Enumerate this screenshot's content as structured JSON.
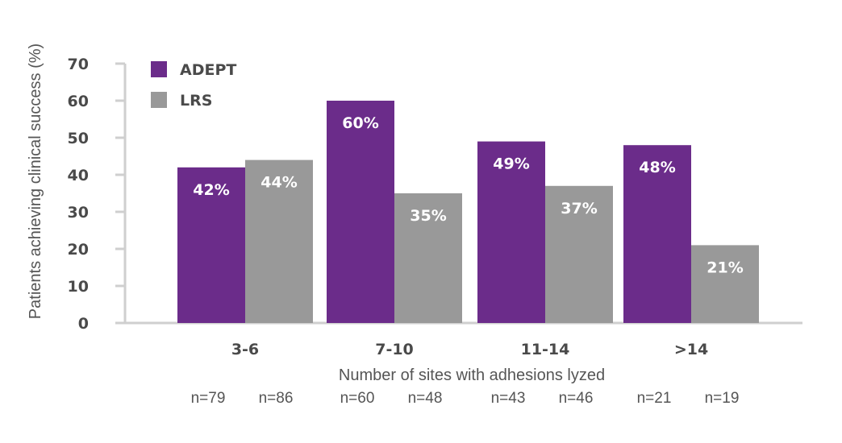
{
  "chart_data": {
    "type": "bar",
    "title": "",
    "ylabel": "Patients achieving clinical success (%)",
    "xlabel": "Number of sites with adhesions lyzed",
    "ylim": [
      0,
      70
    ],
    "yticks": [
      0,
      10,
      20,
      30,
      40,
      50,
      60,
      70
    ],
    "grid": false,
    "legend_position": "top-left",
    "categories": [
      "3-6",
      "7-10",
      "11-14",
      ">14"
    ],
    "series": [
      {
        "name": "ADEPT",
        "color": "#6b2c8a",
        "values": [
          42,
          60,
          49,
          48
        ],
        "labels": [
          "42%",
          "60%",
          "49%",
          "48%"
        ],
        "n": [
          "n=79",
          "n=60",
          "n=43",
          "n=21"
        ]
      },
      {
        "name": "LRS",
        "color": "#999999",
        "values": [
          44,
          35,
          37,
          21
        ],
        "labels": [
          "44%",
          "35%",
          "37%",
          "21%"
        ],
        "n": [
          "n=86",
          "n=48",
          "n=46",
          "n=19"
        ]
      }
    ],
    "axis_color": "#cfcfcf"
  }
}
